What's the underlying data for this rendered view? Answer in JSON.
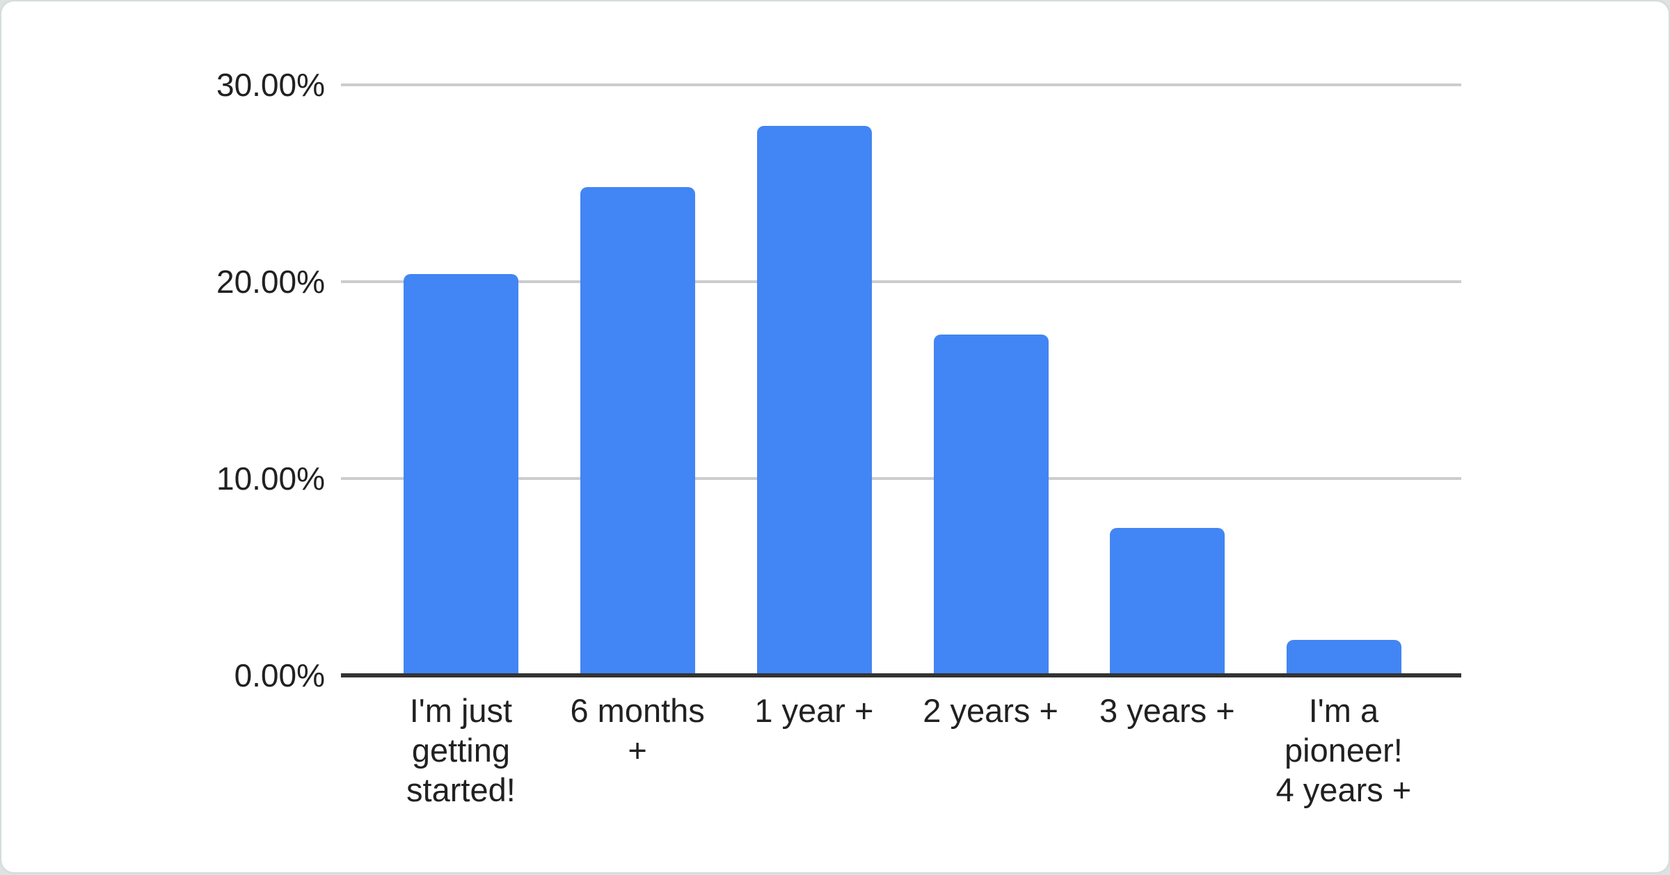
{
  "page": {
    "background_color": "#dde3e3",
    "card_background_color": "#ffffff"
  },
  "chart_data": {
    "type": "bar",
    "title": "",
    "xlabel": "",
    "ylabel": "",
    "categories": [
      "I'm just getting started!",
      "6 months +",
      "1 year +",
      "2 years +",
      "3 years +",
      "I'm a pioneer! 4 years +"
    ],
    "values": [
      20.4,
      24.8,
      27.9,
      17.3,
      7.5,
      1.8
    ],
    "value_unit": "%",
    "ylim": [
      0,
      30
    ],
    "y_ticks": [
      {
        "label": "30.00%",
        "value": 30
      },
      {
        "label": "20.00%",
        "value": 20
      },
      {
        "label": "10.00%",
        "value": 10
      },
      {
        "label": "0.00%",
        "value": 0
      }
    ],
    "x_tick_lines": [
      [
        "I'm just",
        "getting",
        "started!"
      ],
      [
        "6 months",
        "+"
      ],
      [
        "1 year +"
      ],
      [
        "2 years +"
      ],
      [
        "3 years +"
      ],
      [
        "I'm a",
        "pioneer!",
        "4 years +"
      ]
    ],
    "bar_color": "#4285f4",
    "gridline_color": "#cccccc",
    "axis_line_color": "#333333",
    "label_color": "#212121",
    "grid": true,
    "legend_position": "none"
  }
}
